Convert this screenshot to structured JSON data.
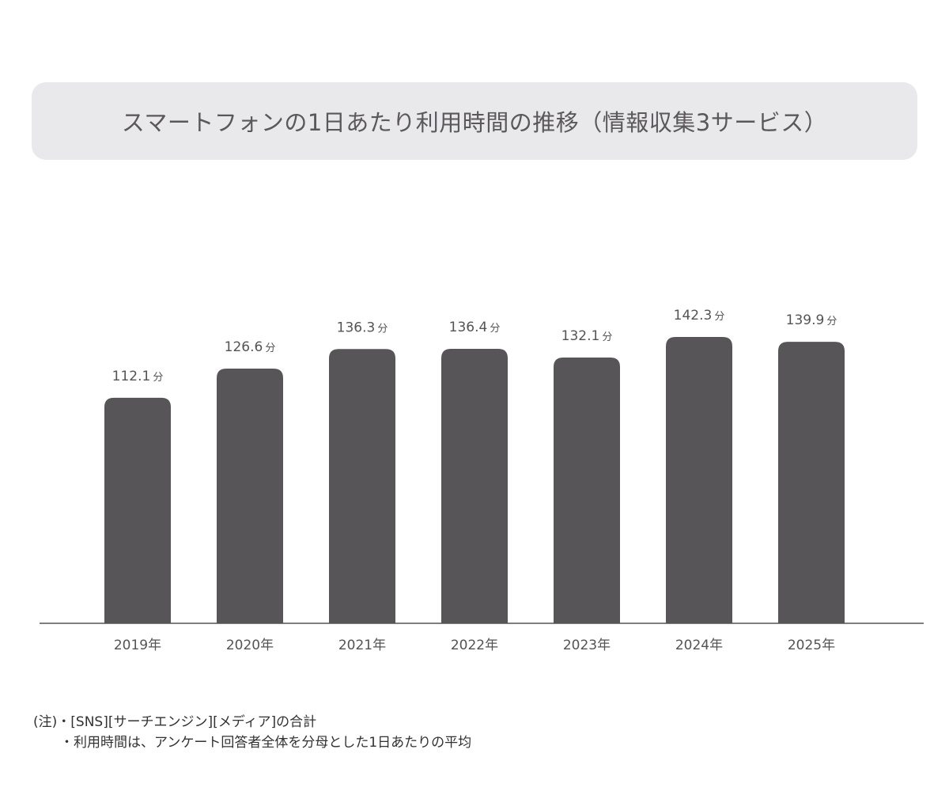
{
  "chart_data": {
    "type": "bar",
    "title": "スマートフォンの1日あたり利用時間の推移（情報収集3サービス）",
    "categories": [
      "2019年",
      "2020年",
      "2021年",
      "2022年",
      "2023年",
      "2024年",
      "2025年"
    ],
    "values": [
      112.1,
      126.6,
      136.3,
      136.4,
      132.1,
      142.3,
      139.9
    ],
    "value_labels": [
      "112.1",
      "126.6",
      "136.3",
      "136.4",
      "132.1",
      "142.3",
      "139.9"
    ],
    "unit": "分",
    "ylim": [
      0,
      140
    ],
    "grid": false,
    "legend": "none",
    "bar_color": "#575557"
  },
  "notes": {
    "line1": "(注)・[SNS][サーチエンジン][メディア]の合計",
    "line2": "・利用時間は、アンケート回答者全体を分母とした1日あたりの平均"
  }
}
